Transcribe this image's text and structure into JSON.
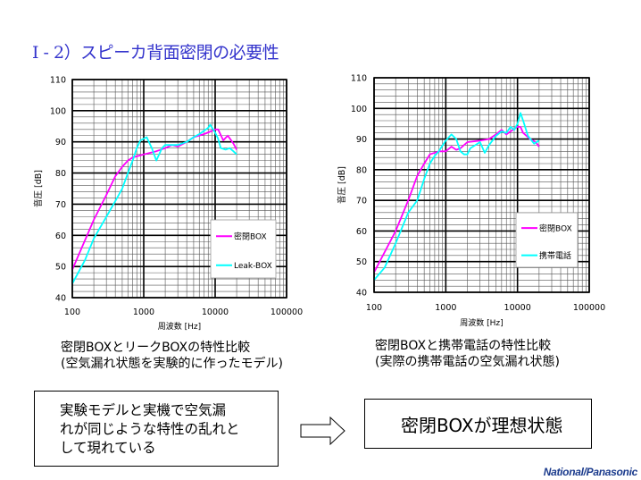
{
  "slide": {
    "title": "Ⅰ - 2）スピーカ背面密閉の必要性",
    "logo": "National/Panasonic"
  },
  "captions": {
    "left": [
      "密閉BOXとリークBOXの特性比較",
      "(空気漏れ状態を実験的に作ったモデル)"
    ],
    "right": [
      "密閉BOXと携帯電話の特性比較",
      "(実際の携帯電話の空気漏れ状態)"
    ]
  },
  "boxes": {
    "left": [
      "実験モデルと実機で空気漏",
      "れが同じような特性の乱れと",
      "して現れている"
    ],
    "right": "密閉BOXが理想状態"
  },
  "chart_data": [
    {
      "type": "line",
      "title": "",
      "xlabel": "周波数 [Hz]",
      "ylabel": "音圧 [dB]",
      "xscale": "log",
      "xlim": [
        100,
        100000
      ],
      "ylim": [
        40,
        110
      ],
      "xticks": [
        "100",
        "1000",
        "10000",
        "100000"
      ],
      "yticks": [
        "40",
        "50",
        "60",
        "70",
        "80",
        "90",
        "100",
        "110"
      ],
      "grid": true,
      "legend": "right",
      "series": [
        {
          "name": "密閉BOX",
          "color": "#ff00ff",
          "points": [
            [
              100,
              49
            ],
            [
              200,
              65
            ],
            [
              300,
              73
            ],
            [
              400,
              79
            ],
            [
              500,
              82
            ],
            [
              600,
              84
            ],
            [
              700,
              85
            ],
            [
              1000,
              86
            ],
            [
              1500,
              87
            ],
            [
              2000,
              88
            ],
            [
              2500,
              89
            ],
            [
              3000,
              88.5
            ],
            [
              4000,
              90
            ],
            [
              5000,
              91.5
            ],
            [
              7000,
              92.5
            ],
            [
              9000,
              93.5
            ],
            [
              10000,
              94
            ],
            [
              11000,
              94
            ],
            [
              13000,
              90.5
            ],
            [
              15000,
              92
            ],
            [
              18000,
              89.5
            ],
            [
              20000,
              87.5
            ]
          ]
        },
        {
          "name": "Leak-BOX",
          "color": "#00ffff",
          "points": [
            [
              100,
              44.5
            ],
            [
              150,
              52
            ],
            [
              200,
              59
            ],
            [
              300,
              66
            ],
            [
              400,
              71
            ],
            [
              500,
              75
            ],
            [
              600,
              80
            ],
            [
              700,
              84
            ],
            [
              800,
              88
            ],
            [
              900,
              90.5
            ],
            [
              1100,
              91.5
            ],
            [
              1300,
              88
            ],
            [
              1500,
              84
            ],
            [
              1800,
              88
            ],
            [
              2000,
              89
            ],
            [
              3000,
              89
            ],
            [
              4000,
              90
            ],
            [
              5000,
              91.5
            ],
            [
              6000,
              92.5
            ],
            [
              8000,
              94.5
            ],
            [
              8500,
              95.5
            ],
            [
              10000,
              93
            ],
            [
              11000,
              91
            ],
            [
              12000,
              88
            ],
            [
              14000,
              87.5
            ],
            [
              16000,
              88
            ],
            [
              18000,
              87
            ],
            [
              20000,
              86
            ]
          ]
        }
      ]
    },
    {
      "type": "line",
      "title": "",
      "xlabel": "周波数 [Hz]",
      "ylabel": "音圧 [dB]",
      "xscale": "log",
      "xlim": [
        100,
        100000
      ],
      "ylim": [
        40,
        110
      ],
      "xticks": [
        "100",
        "1000",
        "10000",
        "100000"
      ],
      "yticks": [
        "40",
        "50",
        "60",
        "70",
        "80",
        "90",
        "100",
        "110"
      ],
      "grid": true,
      "legend": "right",
      "series": [
        {
          "name": "密閉BOX",
          "color": "#ff00ff",
          "points": [
            [
              100,
              46.5
            ],
            [
              200,
              60
            ],
            [
              300,
              70
            ],
            [
              400,
              78
            ],
            [
              500,
              82
            ],
            [
              600,
              85
            ],
            [
              800,
              86
            ],
            [
              1000,
              86
            ],
            [
              1200,
              87.5
            ],
            [
              1400,
              86.5
            ],
            [
              1600,
              87
            ],
            [
              2000,
              89
            ],
            [
              3000,
              89.5
            ],
            [
              4000,
              90
            ],
            [
              5000,
              91.5
            ],
            [
              6000,
              93
            ],
            [
              7000,
              91.5
            ],
            [
              8000,
              92.5
            ],
            [
              10000,
              94
            ],
            [
              11000,
              94
            ],
            [
              12000,
              92
            ],
            [
              15000,
              90
            ],
            [
              18000,
              89
            ],
            [
              20000,
              87.5
            ]
          ]
        },
        {
          "name": "携帯電話",
          "color": "#00ffff",
          "points": [
            [
              100,
              44
            ],
            [
              140,
              48
            ],
            [
              200,
              56
            ],
            [
              300,
              66
            ],
            [
              400,
              70
            ],
            [
              500,
              77
            ],
            [
              600,
              82
            ],
            [
              700,
              84.5
            ],
            [
              800,
              86
            ],
            [
              1000,
              89.5
            ],
            [
              1200,
              91.5
            ],
            [
              1400,
              90
            ],
            [
              1600,
              86
            ],
            [
              1800,
              85
            ],
            [
              2000,
              85
            ],
            [
              2200,
              87
            ],
            [
              3000,
              89
            ],
            [
              3500,
              85.5
            ],
            [
              4000,
              88
            ],
            [
              5000,
              91
            ],
            [
              6000,
              92.5
            ],
            [
              7000,
              92
            ],
            [
              8000,
              94
            ],
            [
              9000,
              93
            ],
            [
              10000,
              95
            ],
            [
              11000,
              98.5
            ],
            [
              12000,
              96
            ],
            [
              14000,
              91
            ],
            [
              17000,
              88.5
            ],
            [
              20000,
              89.5
            ]
          ]
        }
      ]
    }
  ]
}
